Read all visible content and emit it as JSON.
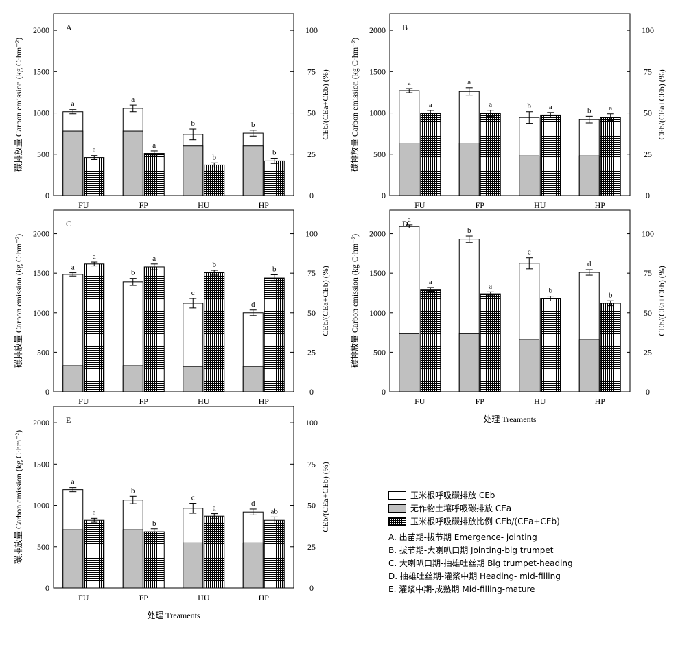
{
  "chart_data": [
    {
      "type": "bar",
      "panel": "A",
      "categories": [
        "FU",
        "FP",
        "HU",
        "HP"
      ],
      "ylabel": "碳排放量 Carbon emission (kg C·hm⁻²)",
      "y2label": "CEb/(CEa+CEb) (%)",
      "xlabel": "",
      "ylim": [
        0,
        2200
      ],
      "y2lim": [
        0,
        110
      ],
      "yticks": [
        "0",
        "500",
        "1000",
        "1500",
        "2000"
      ],
      "y2ticks": [
        "0",
        "25",
        "50",
        "75",
        "100"
      ],
      "total": [
        1015,
        1055,
        740,
        755
      ],
      "total_err": [
        25,
        40,
        65,
        35
      ],
      "total_letters": [
        "a",
        "a",
        "b",
        "b"
      ],
      "CEa": [
        780,
        780,
        600,
        600
      ],
      "ratio": [
        23,
        25.5,
        18.5,
        21
      ],
      "ratio_err": [
        1.2,
        1.5,
        1.3,
        1.6
      ],
      "ratio_letters": [
        "a",
        "a",
        "b",
        "b"
      ]
    },
    {
      "type": "bar",
      "panel": "B",
      "categories": [
        "FU",
        "FP",
        "HU",
        "HP"
      ],
      "ylabel": "碳排放量 Carbon emission (kg C·hm⁻²)",
      "y2label": "CEb/(CEa+CEb) (%)",
      "xlabel": "",
      "ylim": [
        0,
        2200
      ],
      "y2lim": [
        0,
        110
      ],
      "yticks": [
        "0",
        "500",
        "1000",
        "1500",
        "2000"
      ],
      "y2ticks": [
        "0",
        "25",
        "50",
        "75",
        "100"
      ],
      "total": [
        1270,
        1260,
        945,
        920
      ],
      "total_err": [
        25,
        45,
        70,
        40
      ],
      "total_letters": [
        "a",
        "a",
        "b",
        "b"
      ],
      "CEa": [
        635,
        635,
        480,
        480
      ],
      "ratio": [
        50,
        49.8,
        48.8,
        47.5
      ],
      "ratio_err": [
        1.5,
        1.8,
        1.5,
        2.0
      ],
      "ratio_letters": [
        "a",
        "a",
        "a",
        "a"
      ]
    },
    {
      "type": "bar",
      "panel": "C",
      "categories": [
        "FU",
        "FP",
        "HU",
        "HP"
      ],
      "ylabel": "碳排放量 Carbon emission (kg C·hm⁻²)",
      "y2label": "CEb/(CEa+CEb) (%)",
      "xlabel": "",
      "ylim": [
        0,
        2300
      ],
      "y2lim": [
        0,
        115
      ],
      "yticks": [
        "0",
        "500",
        "1000",
        "1500",
        "2000"
      ],
      "y2ticks": [
        "0",
        "25",
        "50",
        "75",
        "100"
      ],
      "total": [
        1485,
        1390,
        1120,
        1000
      ],
      "total_err": [
        20,
        45,
        60,
        35
      ],
      "total_letters": [
        "a",
        "b",
        "c",
        "d"
      ],
      "CEa": [
        330,
        330,
        320,
        320
      ],
      "ratio": [
        80.8,
        79,
        75.3,
        72
      ],
      "ratio_err": [
        1.2,
        1.8,
        1.5,
        2.0
      ],
      "ratio_letters": [
        "a",
        "a",
        "b",
        "b"
      ]
    },
    {
      "type": "bar",
      "panel": "D",
      "categories": [
        "FU",
        "FP",
        "HU",
        "HP"
      ],
      "ylabel": "碳排放量 Carbon emission (kg C·hm⁻²)",
      "y2label": "CEb/(CEa+CEb) (%)",
      "xlabel": "处理 Treaments",
      "ylim": [
        0,
        2300
      ],
      "y2lim": [
        0,
        115
      ],
      "yticks": [
        "0",
        "500",
        "1000",
        "1500",
        "2000"
      ],
      "y2ticks": [
        "0",
        "25",
        "50",
        "75",
        "100"
      ],
      "total": [
        2090,
        1930,
        1625,
        1510
      ],
      "total_err": [
        20,
        40,
        70,
        35
      ],
      "total_letters": [
        "a",
        "b",
        "c",
        "d"
      ],
      "CEa": [
        735,
        735,
        660,
        660
      ],
      "ratio": [
        64.8,
        62,
        59,
        56
      ],
      "ratio_err": [
        1.2,
        1.2,
        1.5,
        1.6
      ],
      "ratio_letters": [
        "a",
        "a",
        "b",
        "b"
      ]
    },
    {
      "type": "bar",
      "panel": "E",
      "categories": [
        "FU",
        "FP",
        "HU",
        "HP"
      ],
      "ylabel": "碳排放量 Carbon emission (kg C·hm⁻²)",
      "y2label": "CEb/(CEa+CEb) (%)",
      "xlabel": "处理 Treaments",
      "ylim": [
        0,
        2200
      ],
      "y2lim": [
        0,
        110
      ],
      "yticks": [
        "0",
        "500",
        "1000",
        "1500",
        "2000"
      ],
      "y2ticks": [
        "0",
        "25",
        "50",
        "75",
        "100"
      ],
      "total": [
        1190,
        1065,
        965,
        920
      ],
      "total_err": [
        25,
        45,
        60,
        35
      ],
      "total_letters": [
        "a",
        "b",
        "c",
        "d"
      ],
      "CEa": [
        705,
        705,
        545,
        545
      ],
      "ratio": [
        41,
        34,
        43.5,
        41
      ],
      "ratio_err": [
        1.2,
        1.8,
        1.5,
        2.0
      ],
      "ratio_letters": [
        "a",
        "b",
        "a",
        "ab"
      ]
    }
  ],
  "legend": {
    "series": [
      {
        "label": "玉米根呼吸碳排放 CEb",
        "swatch": "open"
      },
      {
        "label": "无作物土壤呼吸碳排放 CEa",
        "swatch": "grey"
      },
      {
        "label": "玉米根呼吸碳排放比例 CEb/(CEa+CEb)",
        "swatch": "hatch"
      }
    ],
    "stages": [
      "A. 出苗期-拔节期  Emergence- jointing",
      "B.  拔节期-大喇叭口期  Jointing-big trumpet",
      "C. 大喇叭口期-抽雄吐丝期 Big trumpet-heading",
      "D. 抽雄吐丝期-灌浆中期  Heading- mid-filling",
      "E. 灌浆中期-成熟期 Mid-filling-mature"
    ]
  },
  "colors": {
    "ceb_fill": "#ffffff",
    "cea_fill": "#c0c0c0",
    "hatch_line": "#000000"
  }
}
